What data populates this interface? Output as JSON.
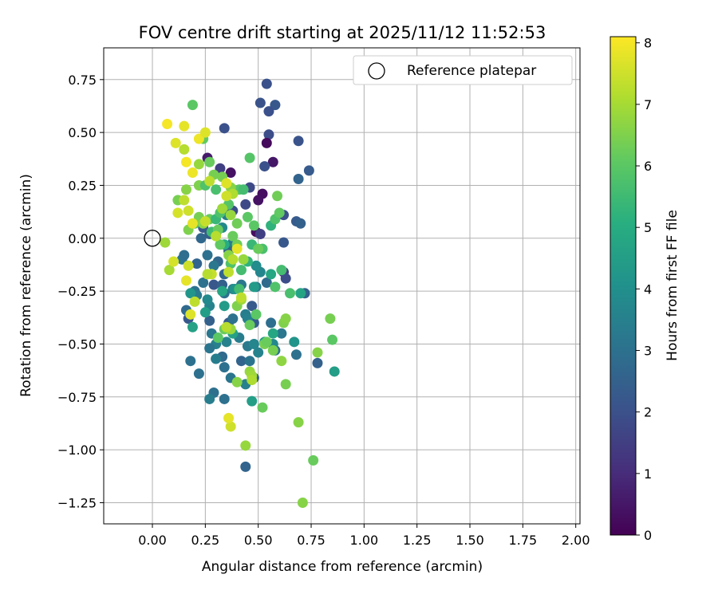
{
  "chart_data": {
    "type": "scatter",
    "title": "FOV centre drift starting at 2025/11/12 11:52:53",
    "xlabel": "Angular distance from reference (arcmin)",
    "ylabel": "Rotation from reference (arcmin)",
    "xlim": [
      -0.23,
      2.02
    ],
    "ylim": [
      -1.35,
      0.9
    ],
    "xticks": [
      0.0,
      0.25,
      0.5,
      0.75,
      1.0,
      1.25,
      1.5,
      1.75,
      2.0
    ],
    "xtick_labels": [
      "0.00",
      "0.25",
      "0.50",
      "0.75",
      "1.00",
      "1.25",
      "1.50",
      "1.75",
      "2.00"
    ],
    "yticks": [
      0.75,
      0.5,
      0.25,
      0.0,
      -0.25,
      -0.5,
      -0.75,
      -1.0,
      -1.25
    ],
    "ytick_labels": [
      "0.75",
      "0.50",
      "0.25",
      "0.00",
      "−0.25",
      "−0.50",
      "−0.75",
      "−1.00",
      "−1.25"
    ],
    "grid": true,
    "legend": {
      "placement": "top-right",
      "entries": [
        "Reference platepar"
      ]
    },
    "reference_point": {
      "label": "Reference platepar",
      "x": 0.0,
      "y": 0.0
    },
    "colorbar": {
      "label": "Hours from first FF file",
      "range": [
        0,
        8.1
      ],
      "ticks": [
        0,
        1,
        2,
        3,
        4,
        5,
        6,
        7,
        8
      ],
      "colormap": "viridis"
    },
    "series": [
      {
        "points": [
          [
            0.54,
            0.73,
            2.0
          ],
          [
            0.51,
            0.64,
            2.1
          ],
          [
            0.58,
            0.63,
            2.2
          ],
          [
            0.55,
            0.6,
            2.0
          ],
          [
            0.55,
            0.49,
            1.9
          ],
          [
            0.54,
            0.45,
            0.2
          ],
          [
            0.34,
            0.52,
            2.0
          ],
          [
            0.69,
            0.46,
            2.1
          ],
          [
            0.74,
            0.32,
            2.3
          ],
          [
            0.69,
            0.28,
            2.6
          ],
          [
            0.57,
            0.36,
            0.5
          ],
          [
            0.53,
            0.34,
            2.0
          ],
          [
            0.37,
            0.31,
            0.4
          ],
          [
            0.32,
            0.33,
            1.5
          ],
          [
            0.26,
            0.38,
            0.6
          ],
          [
            0.52,
            0.21,
            0.3
          ],
          [
            0.5,
            0.18,
            0.4
          ],
          [
            0.46,
            0.24,
            1.8
          ],
          [
            0.44,
            0.16,
            1.8
          ],
          [
            0.38,
            0.13,
            1.9
          ],
          [
            0.49,
            0.03,
            0.3
          ],
          [
            0.51,
            0.02,
            1.5
          ],
          [
            0.62,
            0.11,
            2.0
          ],
          [
            0.68,
            0.08,
            2.3
          ],
          [
            0.7,
            0.07,
            2.5
          ],
          [
            0.62,
            -0.02,
            2.2
          ],
          [
            0.62,
            -0.16,
            1.3
          ],
          [
            0.63,
            -0.19,
            1.9
          ],
          [
            0.54,
            -0.21,
            2.8
          ],
          [
            0.72,
            -0.26,
            2.5
          ],
          [
            0.45,
            -0.38,
            0.4
          ],
          [
            0.47,
            -0.32,
            2.3
          ],
          [
            0.44,
            -0.36,
            3.0
          ],
          [
            0.48,
            -0.4,
            2.4
          ],
          [
            0.36,
            -0.4,
            2.3
          ],
          [
            0.27,
            -0.39,
            2.5
          ],
          [
            0.17,
            -0.38,
            2.2
          ],
          [
            0.16,
            -0.34,
            2.8
          ],
          [
            0.29,
            -0.22,
            2.2
          ],
          [
            0.33,
            -0.22,
            2.5
          ],
          [
            0.24,
            -0.21,
            3.0
          ],
          [
            0.21,
            -0.12,
            2.6
          ],
          [
            0.26,
            -0.08,
            3.0
          ],
          [
            0.14,
            -0.1,
            3.1
          ],
          [
            0.15,
            -0.08,
            2.9
          ],
          [
            0.31,
            -0.11,
            2.7
          ],
          [
            0.34,
            -0.17,
            2.6
          ],
          [
            0.36,
            -0.06,
            2.5
          ],
          [
            0.3,
            0.02,
            3.3
          ],
          [
            0.23,
            0.0,
            2.7
          ],
          [
            0.27,
            0.02,
            2.4
          ],
          [
            0.24,
            0.05,
            2.2
          ],
          [
            0.35,
            0.11,
            3.4
          ],
          [
            0.33,
            0.05,
            3.8
          ],
          [
            0.38,
            -0.02,
            3.3
          ],
          [
            0.29,
            -0.13,
            3.2
          ],
          [
            0.2,
            -0.25,
            3.0
          ],
          [
            0.21,
            -0.27,
            3.3
          ],
          [
            0.27,
            -0.32,
            3.6
          ],
          [
            0.34,
            -0.26,
            3.0
          ],
          [
            0.38,
            -0.24,
            3.6
          ],
          [
            0.42,
            -0.22,
            3.2
          ],
          [
            0.49,
            -0.23,
            3.3
          ],
          [
            0.51,
            -0.16,
            3.7
          ],
          [
            0.49,
            -0.13,
            3.9
          ],
          [
            0.38,
            -0.38,
            3.0
          ],
          [
            0.44,
            -0.36,
            3.4
          ],
          [
            0.45,
            -0.38,
            3.5
          ],
          [
            0.41,
            -0.47,
            3.4
          ],
          [
            0.35,
            -0.49,
            3.6
          ],
          [
            0.28,
            -0.45,
            3.2
          ],
          [
            0.3,
            -0.5,
            3.5
          ],
          [
            0.27,
            -0.52,
            3.1
          ],
          [
            0.33,
            -0.56,
            2.8
          ],
          [
            0.3,
            -0.57,
            3.4
          ],
          [
            0.34,
            -0.61,
            3.0
          ],
          [
            0.42,
            -0.58,
            2.6
          ],
          [
            0.46,
            -0.58,
            3.1
          ],
          [
            0.45,
            -0.51,
            3.3
          ],
          [
            0.5,
            -0.54,
            3.6
          ],
          [
            0.58,
            -0.53,
            3.0
          ],
          [
            0.57,
            -0.5,
            3.8
          ],
          [
            0.61,
            -0.45,
            3.2
          ],
          [
            0.56,
            -0.4,
            2.9
          ],
          [
            0.67,
            -0.49,
            4.2
          ],
          [
            0.68,
            -0.55,
            3.0
          ],
          [
            0.78,
            -0.59,
            2.5
          ],
          [
            0.86,
            -0.63,
            4.5
          ],
          [
            0.48,
            -0.66,
            2.3
          ],
          [
            0.44,
            -0.69,
            3.5
          ],
          [
            0.37,
            -0.66,
            3.1
          ],
          [
            0.29,
            -0.73,
            3.0
          ],
          [
            0.27,
            -0.76,
            3.4
          ],
          [
            0.34,
            -0.76,
            3.0
          ],
          [
            0.47,
            -0.77,
            4.5
          ],
          [
            0.22,
            -0.64,
            3.0
          ],
          [
            0.18,
            -0.58,
            3.0
          ],
          [
            0.44,
            -1.08,
            2.6
          ],
          [
            0.48,
            -0.5,
            3.7
          ],
          [
            0.53,
            -0.49,
            4.3
          ],
          [
            0.57,
            -0.45,
            4.8
          ],
          [
            0.38,
            -0.45,
            4.6
          ],
          [
            0.25,
            -0.35,
            4.5
          ],
          [
            0.18,
            -0.26,
            4.2
          ],
          [
            0.19,
            -0.42,
            4.6
          ],
          [
            0.26,
            -0.29,
            3.8
          ],
          [
            0.33,
            -0.25,
            4.8
          ],
          [
            0.39,
            -0.24,
            4.1
          ],
          [
            0.34,
            -0.32,
            4.4
          ],
          [
            0.41,
            -0.24,
            5.6
          ],
          [
            0.48,
            -0.23,
            4.4
          ],
          [
            0.56,
            -0.17,
            4.8
          ],
          [
            0.58,
            -0.23,
            5.8
          ],
          [
            0.61,
            -0.15,
            5.6
          ],
          [
            0.65,
            -0.26,
            5.7
          ],
          [
            0.7,
            -0.26,
            4.7
          ],
          [
            0.52,
            -0.05,
            5.7
          ],
          [
            0.47,
            -0.03,
            5.4
          ],
          [
            0.45,
            -0.11,
            5.2
          ],
          [
            0.42,
            -0.15,
            5.6
          ],
          [
            0.37,
            -0.12,
            5.8
          ],
          [
            0.34,
            -0.03,
            5.0
          ],
          [
            0.28,
            0.03,
            5.5
          ],
          [
            0.31,
            0.04,
            6.2
          ],
          [
            0.2,
            0.07,
            5.8
          ],
          [
            0.22,
            0.1,
            6.4
          ],
          [
            0.24,
            0.07,
            6.7
          ],
          [
            0.27,
            0.09,
            6.2
          ],
          [
            0.3,
            0.09,
            5.4
          ],
          [
            0.32,
            0.12,
            5.8
          ],
          [
            0.36,
            0.16,
            5.9
          ],
          [
            0.4,
            0.07,
            6.3
          ],
          [
            0.45,
            0.1,
            6.0
          ],
          [
            0.48,
            0.06,
            6.0
          ],
          [
            0.56,
            0.06,
            5.2
          ],
          [
            0.58,
            0.09,
            5.8
          ],
          [
            0.6,
            0.12,
            6.1
          ],
          [
            0.59,
            0.2,
            6.3
          ],
          [
            0.46,
            0.38,
            5.9
          ],
          [
            0.41,
            0.23,
            5.9
          ],
          [
            0.43,
            0.23,
            5.6
          ],
          [
            0.3,
            0.23,
            5.7
          ],
          [
            0.33,
            0.29,
            6.4
          ],
          [
            0.29,
            0.3,
            6.4
          ],
          [
            0.27,
            0.36,
            6.2
          ],
          [
            0.22,
            0.35,
            6.8
          ],
          [
            0.24,
            0.47,
            6.1
          ],
          [
            0.19,
            0.63,
            6.0
          ],
          [
            0.15,
            0.42,
            7.2
          ],
          [
            0.16,
            0.23,
            6.6
          ],
          [
            0.12,
            0.18,
            6.4
          ],
          [
            0.17,
            0.13,
            7.5
          ],
          [
            0.15,
            0.18,
            7.3
          ],
          [
            0.22,
            0.25,
            6.5
          ],
          [
            0.25,
            0.25,
            5.8
          ],
          [
            0.37,
            0.24,
            6.6
          ],
          [
            0.38,
            0.21,
            7.1
          ],
          [
            0.32,
            -0.03,
            6.1
          ],
          [
            0.38,
            0.01,
            6.2
          ],
          [
            0.4,
            -0.03,
            6.3
          ],
          [
            0.36,
            -0.08,
            6.6
          ],
          [
            0.43,
            -0.1,
            6.8
          ],
          [
            0.5,
            -0.05,
            6.2
          ],
          [
            0.49,
            -0.36,
            6.0
          ],
          [
            0.46,
            -0.41,
            6.2
          ],
          [
            0.4,
            -0.32,
            6.5
          ],
          [
            0.42,
            -0.29,
            6.9
          ],
          [
            0.34,
            -0.43,
            6.2
          ],
          [
            0.37,
            -0.43,
            6.8
          ],
          [
            0.31,
            -0.47,
            6.0
          ],
          [
            0.53,
            -0.5,
            6.4
          ],
          [
            0.54,
            -0.49,
            6.2
          ],
          [
            0.57,
            -0.53,
            6.4
          ],
          [
            0.61,
            -0.58,
            6.7
          ],
          [
            0.62,
            -0.4,
            6.5
          ],
          [
            0.63,
            -0.38,
            6.6
          ],
          [
            0.63,
            -0.69,
            6.4
          ],
          [
            0.46,
            -0.63,
            6.8
          ],
          [
            0.47,
            -0.65,
            6.9
          ],
          [
            0.47,
            -0.67,
            7.1
          ],
          [
            0.4,
            -0.68,
            6.6
          ],
          [
            0.52,
            -0.8,
            6.2
          ],
          [
            0.84,
            -0.38,
            6.4
          ],
          [
            0.85,
            -0.48,
            6.0
          ],
          [
            0.78,
            -0.54,
            6.6
          ],
          [
            0.69,
            -0.87,
            6.6
          ],
          [
            0.76,
            -1.05,
            6.2
          ],
          [
            0.71,
            -1.25,
            6.6
          ],
          [
            0.44,
            -0.98,
            6.8
          ],
          [
            0.37,
            -0.89,
            7.5
          ],
          [
            0.36,
            -0.85,
            7.8
          ],
          [
            0.18,
            -0.36,
            7.7
          ],
          [
            0.2,
            -0.3,
            7.3
          ],
          [
            0.16,
            -0.2,
            7.8
          ],
          [
            0.17,
            -0.13,
            7.5
          ],
          [
            0.08,
            -0.15,
            7.0
          ],
          [
            0.1,
            -0.11,
            7.6
          ],
          [
            0.06,
            -0.02,
            6.9
          ],
          [
            0.17,
            0.04,
            6.5
          ],
          [
            0.19,
            0.07,
            7.8
          ],
          [
            0.12,
            0.12,
            7.6
          ],
          [
            0.19,
            0.31,
            7.9
          ],
          [
            0.16,
            0.36,
            8.0
          ],
          [
            0.11,
            0.45,
            7.7
          ],
          [
            0.07,
            0.54,
            8.0
          ],
          [
            0.15,
            0.53,
            7.8
          ],
          [
            0.22,
            0.47,
            7.9
          ],
          [
            0.25,
            0.5,
            7.7
          ],
          [
            0.27,
            0.27,
            7.3
          ],
          [
            0.35,
            0.2,
            7.5
          ],
          [
            0.35,
            0.26,
            7.7
          ],
          [
            0.33,
            0.14,
            6.9
          ],
          [
            0.37,
            0.11,
            6.8
          ],
          [
            0.4,
            -0.05,
            7.8
          ],
          [
            0.38,
            -0.1,
            7.2
          ],
          [
            0.36,
            -0.16,
            7.3
          ],
          [
            0.28,
            -0.17,
            7.4
          ],
          [
            0.26,
            -0.17,
            7.2
          ],
          [
            0.42,
            -0.28,
            7.3
          ],
          [
            0.35,
            -0.42,
            7.2
          ],
          [
            0.25,
            0.08,
            7.4
          ],
          [
            0.3,
            0.01,
            7.2
          ]
        ]
      }
    ]
  }
}
